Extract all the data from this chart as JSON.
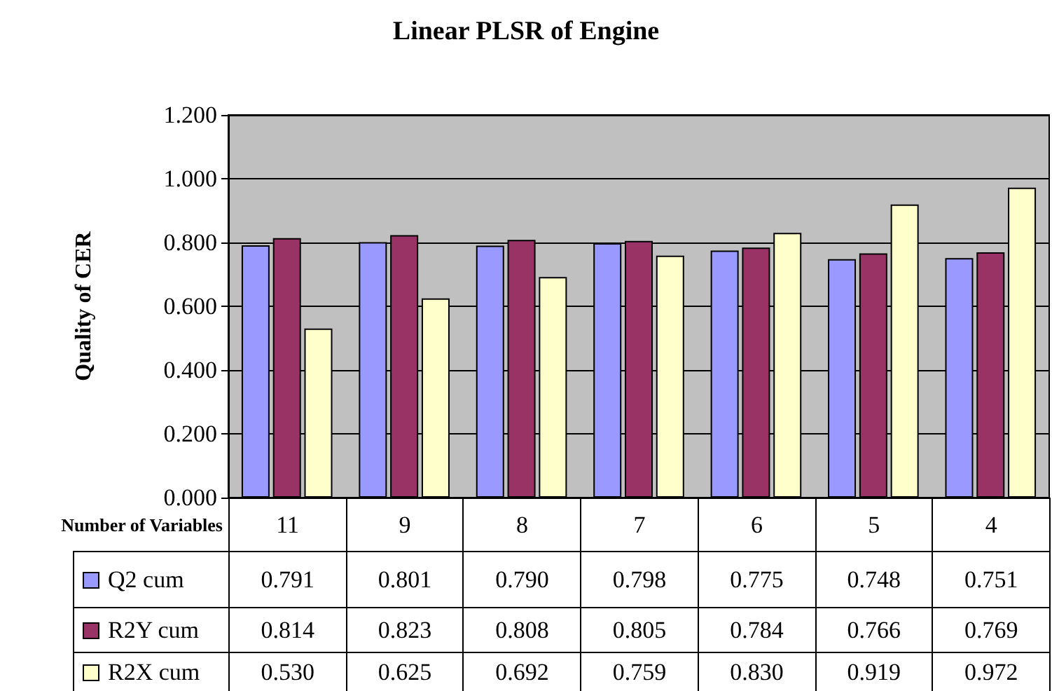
{
  "chart_data": {
    "type": "bar",
    "title": "Linear PLSR of Engine",
    "xlabel": "Number of Variables",
    "ylabel": "Quality of CER",
    "categories": [
      "11",
      "9",
      "8",
      "7",
      "6",
      "5",
      "4"
    ],
    "series": [
      {
        "name": "Q2 cum",
        "color": "#9999ff",
        "values": [
          0.791,
          0.801,
          0.79,
          0.798,
          0.775,
          0.748,
          0.751
        ],
        "value_labels": [
          "0.791",
          "0.801",
          "0.790",
          "0.798",
          "0.775",
          "0.748",
          "0.751"
        ]
      },
      {
        "name": "R2Y cum",
        "color": "#993366",
        "values": [
          0.814,
          0.823,
          0.808,
          0.805,
          0.784,
          0.766,
          0.769
        ],
        "value_labels": [
          "0.814",
          "0.823",
          "0.808",
          "0.805",
          "0.784",
          "0.766",
          "0.769"
        ]
      },
      {
        "name": "R2X cum",
        "color": "#ffffcc",
        "values": [
          0.53,
          0.625,
          0.692,
          0.759,
          0.83,
          0.919,
          0.972
        ],
        "value_labels": [
          "0.530",
          "0.625",
          "0.692",
          "0.759",
          "0.830",
          "0.919",
          "0.972"
        ]
      }
    ],
    "ylim": [
      0,
      1.2
    ],
    "yticks": [
      {
        "value": 0,
        "label": "0.000"
      },
      {
        "value": 0.2,
        "label": "0.200"
      },
      {
        "value": 0.4,
        "label": "0.400"
      },
      {
        "value": 0.6,
        "label": "0.600"
      },
      {
        "value": 0.8,
        "label": "0.800"
      },
      {
        "value": 1.0,
        "label": "1.000"
      },
      {
        "value": 1.2,
        "label": "1.200"
      }
    ],
    "grid": "y",
    "legend": "bottom"
  }
}
